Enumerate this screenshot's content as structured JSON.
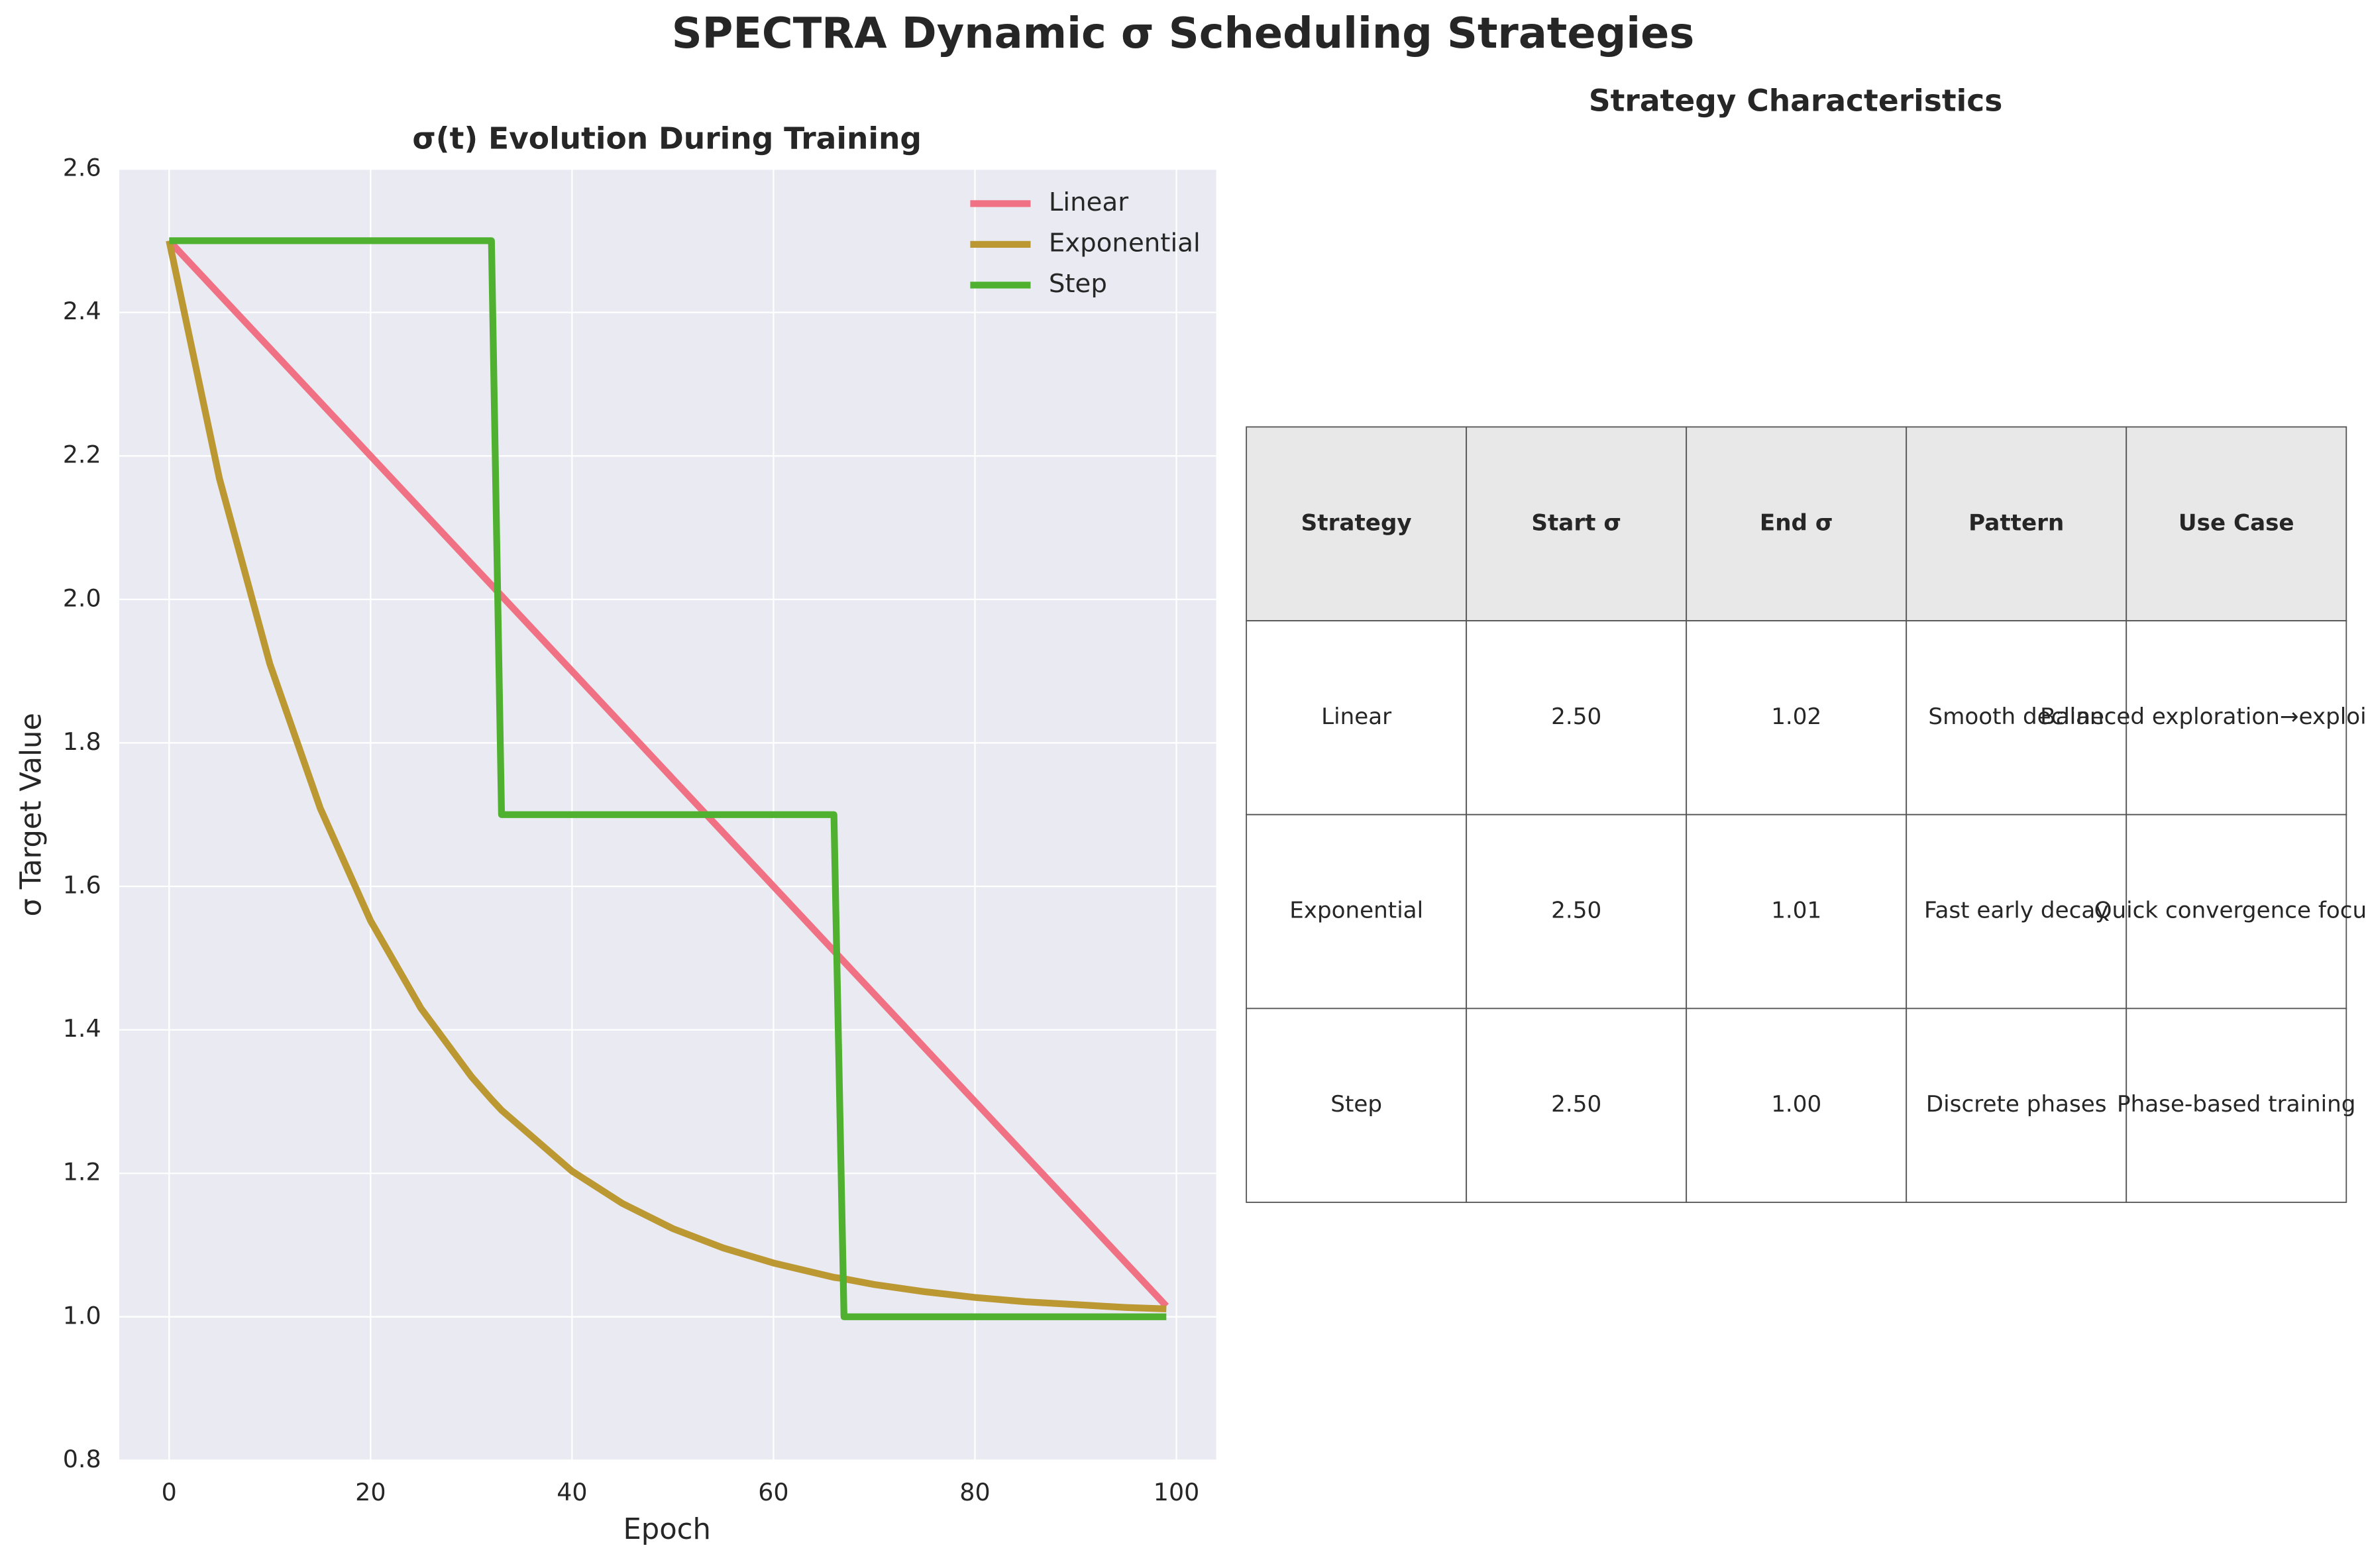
{
  "title": "SPECTRA Dynamic σ Scheduling Strategies",
  "chart_data": {
    "type": "line",
    "title": "σ(t) Evolution During Training",
    "x_label": "Epoch",
    "y_label": "σ Target Value",
    "x": [
      0,
      5,
      10,
      15,
      20,
      25,
      30,
      32,
      33,
      40,
      45,
      50,
      55,
      60,
      66,
      67,
      70,
      75,
      80,
      85,
      90,
      95,
      99
    ],
    "series": [
      {
        "name": "Linear",
        "color": "#f07183",
        "values": [
          2.5,
          2.425,
          2.35,
          2.275,
          2.2,
          2.125,
          2.05,
          2.02,
          2.005,
          1.9,
          1.825,
          1.75,
          1.675,
          1.6,
          1.51,
          1.495,
          1.45,
          1.375,
          1.3,
          1.225,
          1.15,
          1.075,
          1.015
        ]
      },
      {
        "name": "Exponential",
        "color": "#bb9832",
        "values": [
          2.5,
          2.168,
          1.91,
          1.709,
          1.552,
          1.43,
          1.335,
          1.303,
          1.288,
          1.203,
          1.158,
          1.123,
          1.096,
          1.075,
          1.055,
          1.053,
          1.045,
          1.035,
          1.027,
          1.021,
          1.017,
          1.013,
          1.011
        ]
      },
      {
        "name": "Step",
        "color": "#50b131",
        "values": [
          2.5,
          2.5,
          2.5,
          2.5,
          2.5,
          2.5,
          2.5,
          2.5,
          1.7,
          1.7,
          1.7,
          1.7,
          1.7,
          1.7,
          1.7,
          1.0,
          1.0,
          1.0,
          1.0,
          1.0,
          1.0,
          1.0,
          1.0
        ]
      }
    ],
    "xlim": [
      -4.95,
      103.95
    ],
    "ylim": [
      0.8,
      2.6
    ],
    "xticks": [
      0,
      20,
      40,
      60,
      80,
      100
    ],
    "yticks": [
      {
        "value": 0.8,
        "label": "0.8"
      },
      {
        "value": 1.0,
        "label": "1.0"
      },
      {
        "value": 1.2,
        "label": "1.2"
      },
      {
        "value": 1.4,
        "label": "1.4"
      },
      {
        "value": 1.6,
        "label": "1.6"
      },
      {
        "value": 1.8,
        "label": "1.8"
      },
      {
        "value": 2.0,
        "label": "2.0"
      },
      {
        "value": 2.2,
        "label": "2.2"
      },
      {
        "value": 2.4,
        "label": "2.4"
      },
      {
        "value": 2.6,
        "label": "2.6"
      }
    ],
    "grid": true,
    "legend": "upper-right"
  },
  "table": {
    "title": "Strategy Characteristics",
    "header": [
      "Strategy",
      "Start σ",
      "End σ",
      "Pattern",
      "Use Case"
    ],
    "rows": [
      [
        "Linear",
        "2.50",
        "1.02",
        "Smooth decline",
        "Balanced exploration→exploitation"
      ],
      [
        "Exponential",
        "2.50",
        "1.01",
        "Fast early decay",
        "Quick convergence focus"
      ],
      [
        "Step",
        "2.50",
        "1.00",
        "Discrete phases",
        "Phase-based training"
      ]
    ]
  }
}
